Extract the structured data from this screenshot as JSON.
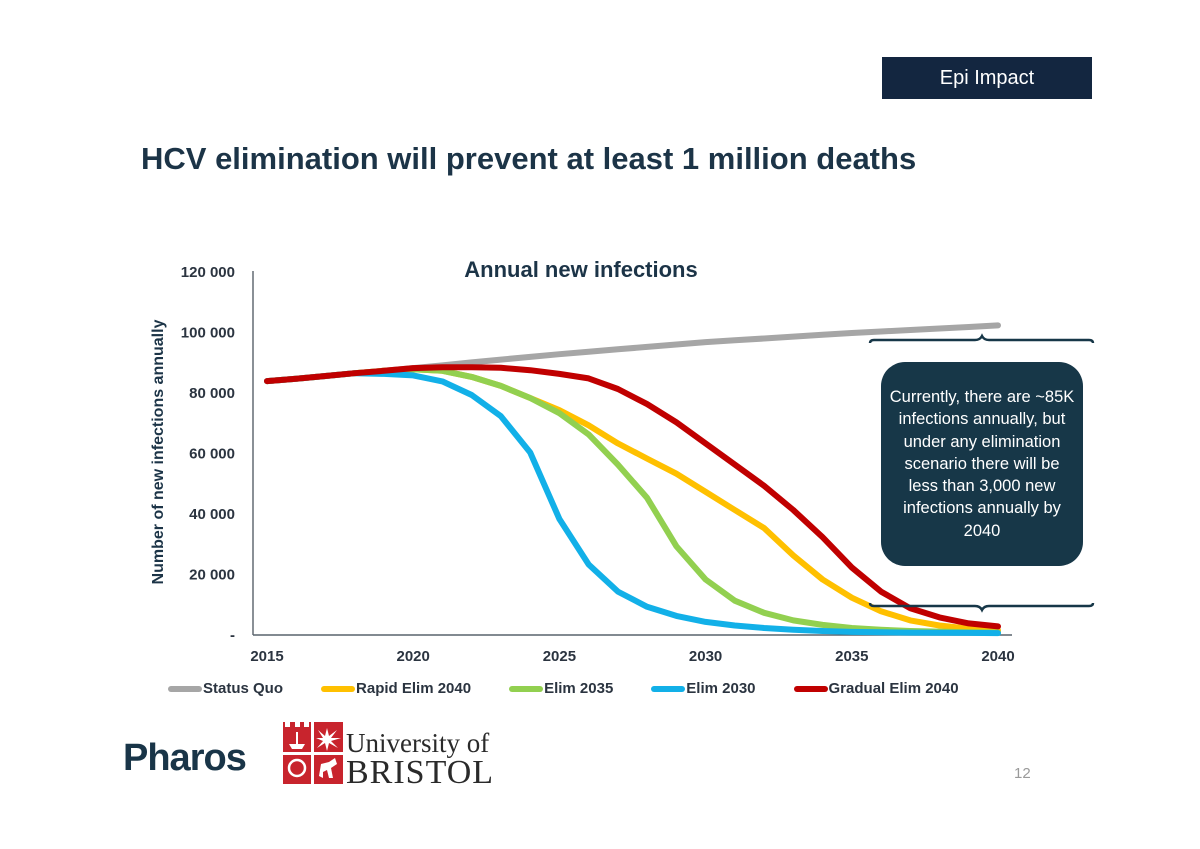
{
  "header": {
    "tag_label": "Epi Impact",
    "title": "HCV elimination will prevent at least 1 million deaths"
  },
  "callout": {
    "text": "Currently, there are ~85K infections annually, but under any elimination scenario there will be less than 3,000 new infections annually by 2040"
  },
  "footer": {
    "logo_pharos": "Pharos",
    "logo_bristol_line1": "University of",
    "logo_bristol_line2": "BRISTOL",
    "page_number": "12"
  },
  "chart_data": {
    "type": "line",
    "title": "Annual new infections",
    "xlabel": "",
    "ylabel": "Number of new infections annually",
    "xlim": [
      2015,
      2040
    ],
    "ylim": [
      0,
      120000
    ],
    "x_ticks": [
      "2015",
      "2020",
      "2025",
      "2030",
      "2035",
      "2040"
    ],
    "x_tick_values": [
      2015,
      2020,
      2025,
      2030,
      2035,
      2040
    ],
    "y_ticks": [
      "-",
      "20 000",
      "40 000",
      "60 000",
      "80 000",
      "100 000",
      "120 000"
    ],
    "y_tick_values": [
      0,
      20000,
      40000,
      60000,
      80000,
      100000,
      120000
    ],
    "grid": false,
    "legend_position": "bottom",
    "x": [
      2015,
      2016,
      2017,
      2018,
      2019,
      2020,
      2021,
      2022,
      2023,
      2024,
      2025,
      2026,
      2027,
      2028,
      2029,
      2030,
      2031,
      2032,
      2033,
      2034,
      2035,
      2036,
      2037,
      2038,
      2039,
      2040
    ],
    "series": [
      {
        "name": "Status Quo",
        "color": "#a6a6a6",
        "values": [
          83600,
          84400,
          85300,
          86200,
          87000,
          87900,
          88800,
          89800,
          90700,
          91600,
          92500,
          93300,
          94100,
          94900,
          95700,
          96500,
          97100,
          97700,
          98300,
          98900,
          99500,
          100000,
          100500,
          101000,
          101500,
          102000
        ]
      },
      {
        "name": "Rapid Elim 2040",
        "color": "#ffc000",
        "values": [
          83600,
          84400,
          85300,
          86200,
          87000,
          87500,
          87000,
          85000,
          82000,
          78000,
          74000,
          69000,
          63000,
          58000,
          53000,
          47000,
          41000,
          35000,
          26000,
          18000,
          12000,
          7500,
          4500,
          2800,
          1800,
          1200
        ]
      },
      {
        "name": "Elim 2035",
        "color": "#92d050",
        "values": [
          83600,
          84400,
          85300,
          86200,
          87000,
          87500,
          87000,
          85000,
          82000,
          78000,
          73000,
          66000,
          56000,
          45000,
          29000,
          18000,
          11000,
          7000,
          4500,
          3000,
          2000,
          1400,
          1000,
          800,
          600,
          500
        ]
      },
      {
        "name": "Elim 2030",
        "color": "#12b0e8",
        "values": [
          83600,
          84400,
          85300,
          86200,
          86000,
          85500,
          83500,
          79000,
          72000,
          60000,
          38000,
          23000,
          14000,
          9000,
          6000,
          4000,
          2800,
          2000,
          1400,
          1000,
          700,
          550,
          450,
          400,
          350,
          300
        ]
      },
      {
        "name": "Gradual Elim 2040",
        "color": "#c00000",
        "values": [
          83600,
          84400,
          85300,
          86200,
          87000,
          87900,
          88200,
          88200,
          88000,
          87200,
          86000,
          84500,
          81000,
          76000,
          70000,
          63000,
          56000,
          49000,
          41000,
          32000,
          22000,
          14000,
          8500,
          5500,
          3500,
          2500
        ]
      }
    ]
  }
}
